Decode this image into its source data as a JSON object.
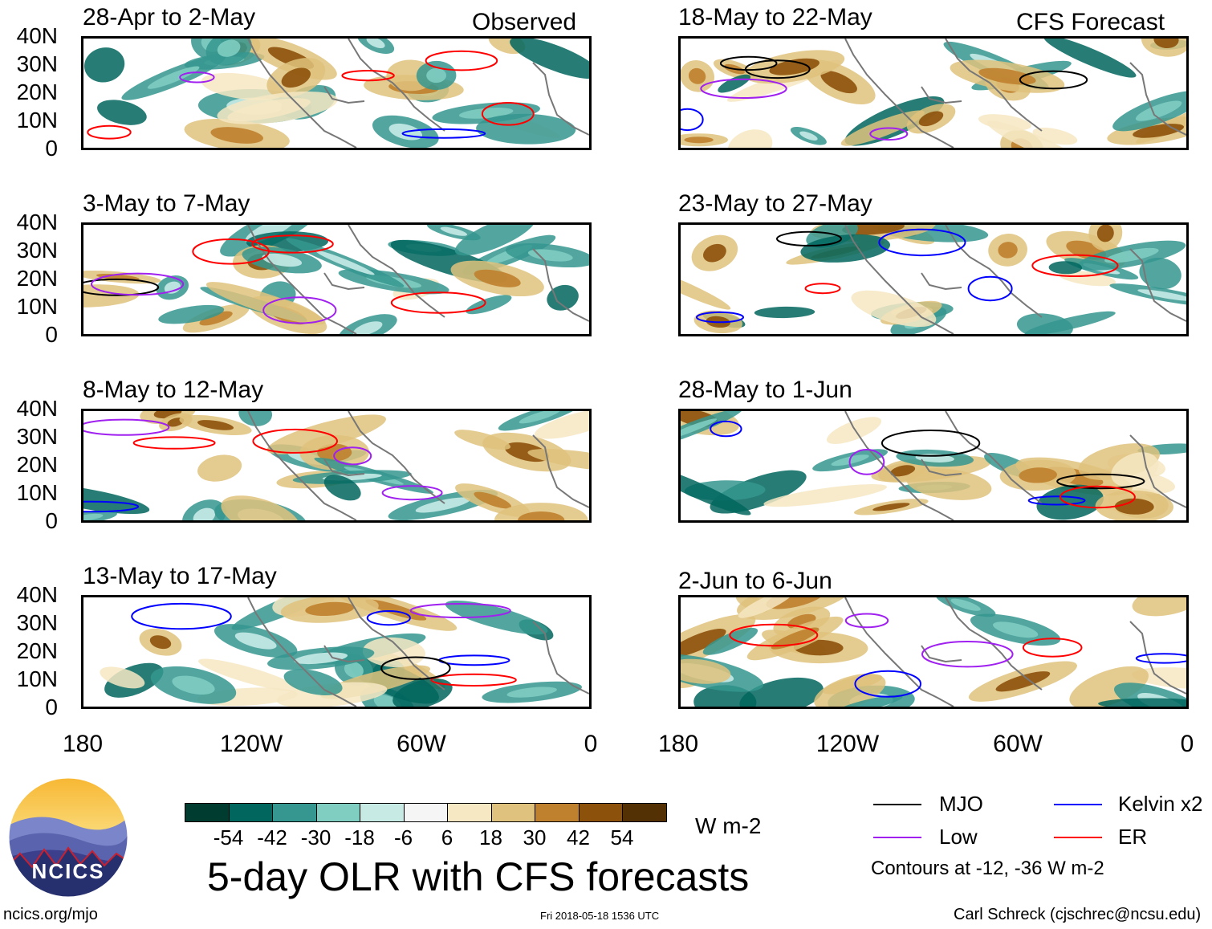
{
  "figure": {
    "title": "5-day OLR with CFS forecasts",
    "observed_tag": "Observed",
    "forecast_tag": "CFS Forecast",
    "units": "W m-2",
    "contour_note": "Contours at -12, -36 W m-2",
    "website": "ncics.org/mjo",
    "timestamp": "Fri 2018-05-18 1536 UTC",
    "credit": "Carl Schreck (cjschrec@ncsu.edu)",
    "logo_text": "NCICS"
  },
  "axes": {
    "y_ticks": [
      "40N",
      "30N",
      "20N",
      "10N",
      "0"
    ],
    "x_ticks": [
      "180",
      "120W",
      "60W",
      "0"
    ]
  },
  "panels": {
    "left": [
      {
        "title": "28-Apr to 2-May"
      },
      {
        "title": "3-May to 7-May"
      },
      {
        "title": "8-May to 12-May"
      },
      {
        "title": "13-May to 17-May"
      }
    ],
    "right": [
      {
        "title": "18-May to 22-May"
      },
      {
        "title": "23-May to 27-May"
      },
      {
        "title": "28-May to 1-Jun"
      },
      {
        "title": "2-Jun to 6-Jun"
      }
    ]
  },
  "colorbar": {
    "labels": [
      "-54",
      "-42",
      "-30",
      "-18",
      "-6",
      "6",
      "18",
      "30",
      "42",
      "54"
    ],
    "colors": [
      "#003c30",
      "#01665e",
      "#35978f",
      "#80cdc1",
      "#c7eae5",
      "#f5f5f5",
      "#f6e8c3",
      "#dfc27d",
      "#bf812d",
      "#8c510a",
      "#543005"
    ]
  },
  "legend": {
    "items": [
      {
        "label": "MJO",
        "color": "#000000"
      },
      {
        "label": "Kelvin x2",
        "color": "#0000ff"
      },
      {
        "label": "Low",
        "color": "#a020f0"
      },
      {
        "label": "ER",
        "color": "#ff0000"
      }
    ]
  },
  "chart_data": {
    "type": "heatmap",
    "variable": "OLR anomaly",
    "units": "W m-2",
    "lon_range": [
      "180",
      "0"
    ],
    "lat_range": [
      "0",
      "40N"
    ],
    "contour_levels": [
      -12,
      -36
    ],
    "panels": [
      "28-Apr to 2-May",
      "3-May to 7-May",
      "8-May to 12-May",
      "13-May to 17-May",
      "18-May to 22-May",
      "23-May to 27-May",
      "28-May to 1-Jun",
      "2-Jun to 6-Jun"
    ]
  }
}
